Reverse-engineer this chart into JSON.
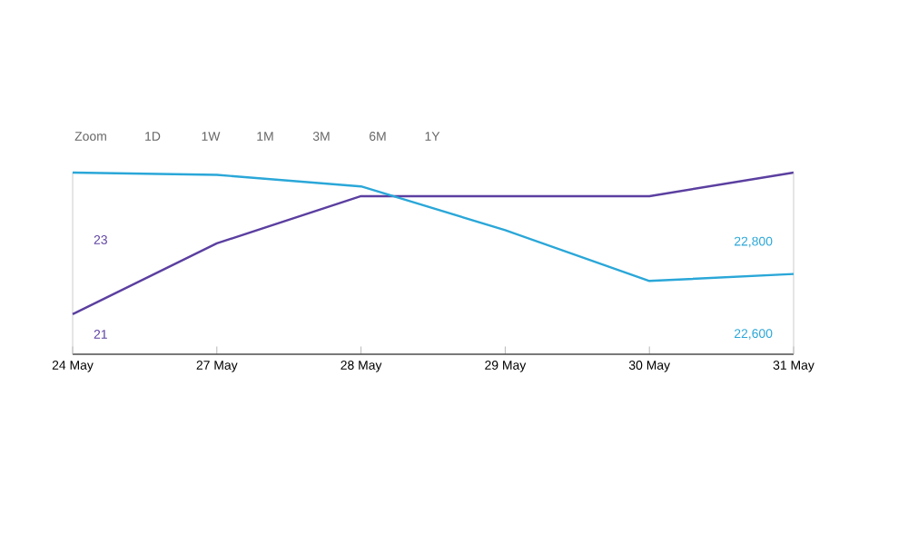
{
  "chart_data": {
    "type": "line",
    "categories": [
      "24 May",
      "27 May",
      "28 May",
      "29 May",
      "30 May",
      "31 May"
    ],
    "series": [
      {
        "color": "#5b3fa0",
        "values": [
          21.5,
          23.0,
          24.0,
          24.0,
          24.0,
          24.5
        ]
      },
      {
        "color": "#2aa7d8",
        "axis": "y2",
        "values": [
          22960,
          22955,
          22930,
          22835,
          22725,
          22740
        ]
      }
    ],
    "ylim": [
      20.65,
      24.5
    ],
    "yticks": [
      21,
      23
    ],
    "y2lim": [
      22566,
      22960
    ],
    "y2ticks": [
      {
        "value": 22600,
        "label": "22,600"
      },
      {
        "value": 22800,
        "label": "22,800"
      }
    ],
    "annotations": [
      "Zoom",
      "1D",
      "1W",
      "1M",
      "3M",
      "6M",
      "1Y"
    ],
    "grid": false,
    "marker": "none",
    "line_style": "solid"
  }
}
